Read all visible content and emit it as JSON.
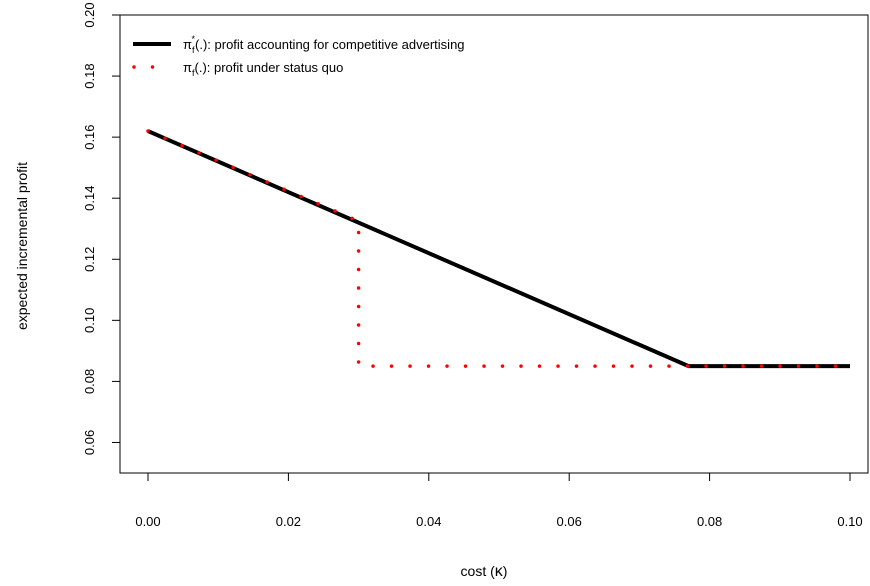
{
  "chart_data": {
    "type": "line",
    "title": "",
    "xlabel": "cost (κ)",
    "ylabel": "expected incremental profit",
    "xlim": [
      0.0,
      0.1
    ],
    "ylim": [
      0.05,
      0.2
    ],
    "x_ticks": [
      "0.00",
      "0.02",
      "0.04",
      "0.06",
      "0.08",
      "0.10"
    ],
    "y_ticks": [
      "0.06",
      "0.08",
      "0.10",
      "0.12",
      "0.14",
      "0.16",
      "0.18",
      "0.20"
    ],
    "grid": false,
    "legend_position": "top-left",
    "series": [
      {
        "name": "π_f^*(.): profit accounting for competitive advertising",
        "style": "solid",
        "color": "#000000",
        "x": [
          0.0,
          0.077,
          0.1
        ],
        "y": [
          0.162,
          0.085,
          0.085
        ]
      },
      {
        "name": "π_f(.): profit under status quo",
        "style": "dotted",
        "color": "#ff0000",
        "x": [
          0.0,
          0.03,
          0.03,
          0.1
        ],
        "y": [
          0.162,
          0.1325,
          0.085,
          0.085
        ]
      }
    ]
  }
}
